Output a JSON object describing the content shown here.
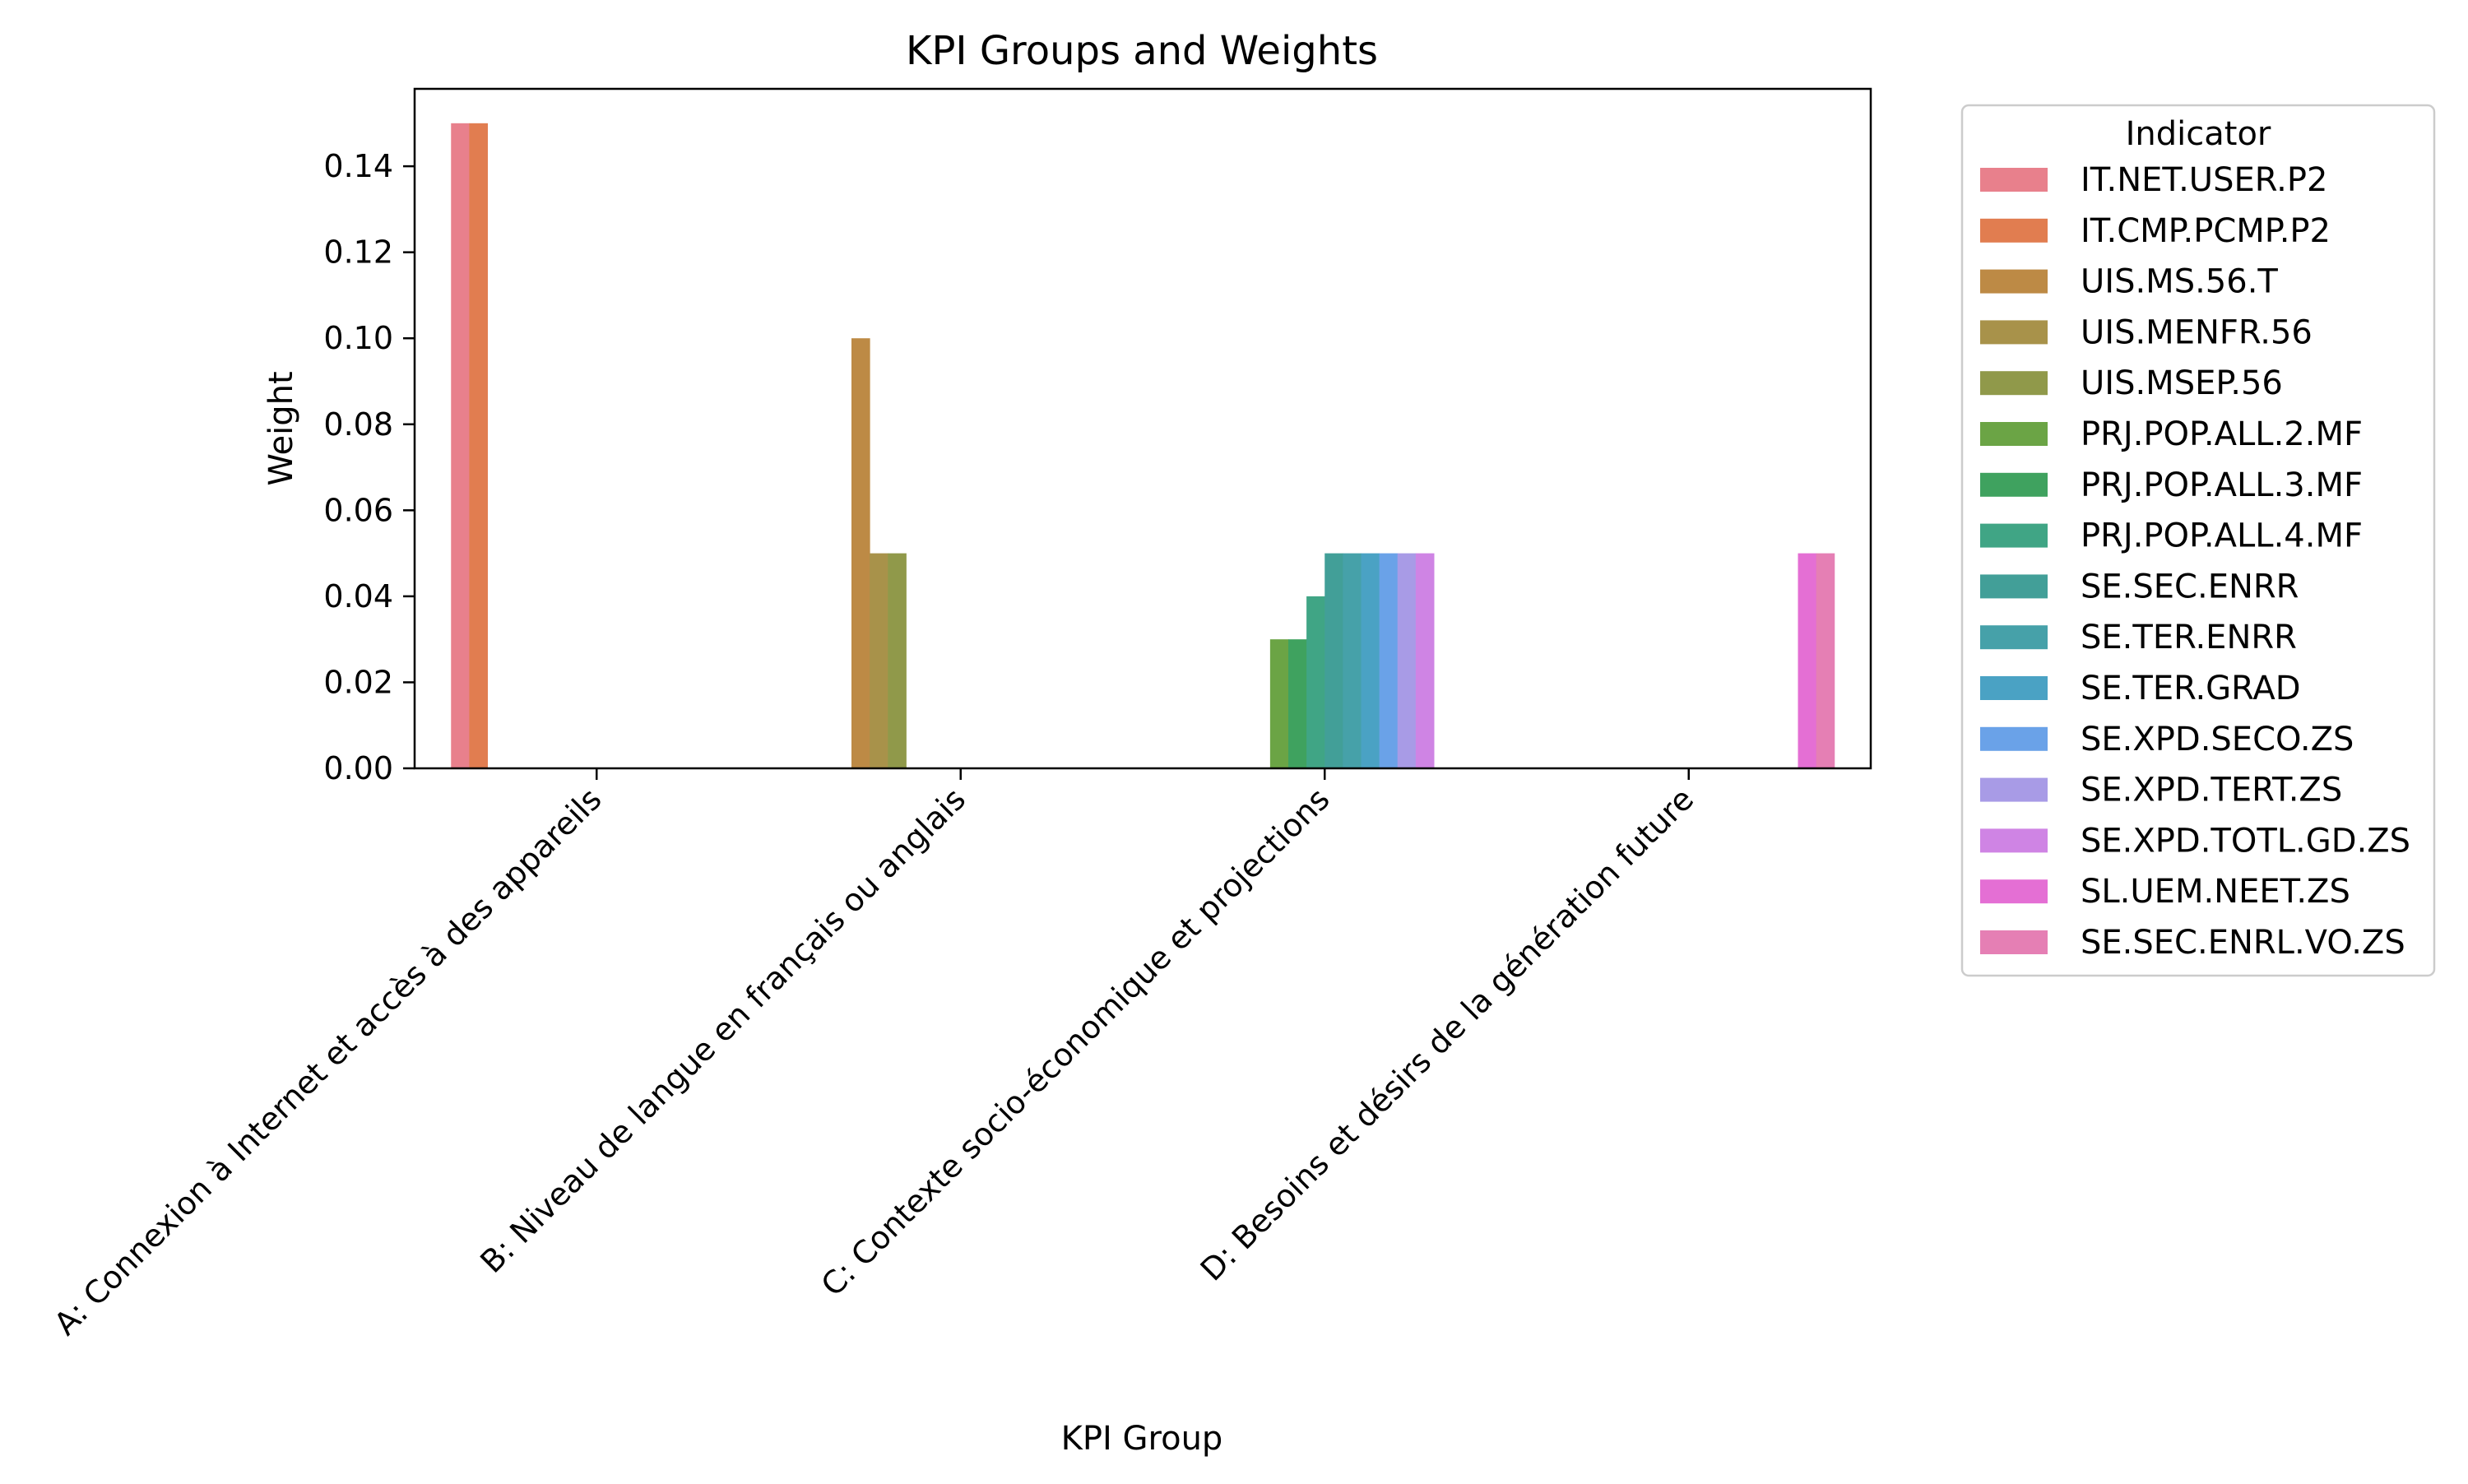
{
  "chart_data": {
    "type": "bar",
    "title": "KPI Groups and Weights",
    "xlabel": "KPI Group",
    "ylabel": "Weight",
    "ylim": [
      0,
      0.158
    ],
    "yticks": [
      "0.00",
      "0.02",
      "0.04",
      "0.06",
      "0.08",
      "0.10",
      "0.12",
      "0.14"
    ],
    "ytick_values": [
      0,
      0.02,
      0.04,
      0.06,
      0.08,
      0.1,
      0.12,
      0.14
    ],
    "grid": false,
    "legend_title": "Indicator",
    "legend_position": "outside right, top",
    "categories": [
      "A: Connexion à Internet et accès à des appareils",
      "B: Niveau de langue en français ou anglais",
      "C: Contexte socio-économique et projections",
      "D: Besoins et désirs de la génération future"
    ],
    "series": [
      {
        "name": "IT.NET.USER.P2",
        "color": "#e8808c",
        "values": [
          0.15,
          0,
          0,
          0
        ]
      },
      {
        "name": "IT.CMP.PCMP.P2",
        "color": "#e17d50",
        "values": [
          0.15,
          0,
          0,
          0
        ]
      },
      {
        "name": "UIS.MS.56.T",
        "color": "#bd8a45",
        "values": [
          0,
          0.1,
          0,
          0
        ]
      },
      {
        "name": "UIS.MENFR.56",
        "color": "#a8924a",
        "values": [
          0,
          0.05,
          0,
          0
        ]
      },
      {
        "name": "UIS.MSEP.56",
        "color": "#90994a",
        "values": [
          0,
          0.05,
          0,
          0
        ]
      },
      {
        "name": "PRJ.POP.ALL.2.MF",
        "color": "#6ba445",
        "values": [
          0,
          0,
          0.03,
          0
        ]
      },
      {
        "name": "PRJ.POP.ALL.3.MF",
        "color": "#3fa25f",
        "values": [
          0,
          0,
          0.03,
          0
        ]
      },
      {
        "name": "PRJ.POP.ALL.4.MF",
        "color": "#40a585",
        "values": [
          0,
          0,
          0.04,
          0
        ]
      },
      {
        "name": "SE.SEC.ENRR",
        "color": "#429f98",
        "values": [
          0,
          0,
          0.05,
          0
        ]
      },
      {
        "name": "SE.TER.ENRR",
        "color": "#46a1a9",
        "values": [
          0,
          0,
          0.05,
          0
        ]
      },
      {
        "name": "SE.TER.GRAD",
        "color": "#4aa2c4",
        "values": [
          0,
          0,
          0.05,
          0
        ]
      },
      {
        "name": "SE.XPD.SECO.ZS",
        "color": "#6aa2e8",
        "values": [
          0,
          0,
          0.05,
          0
        ]
      },
      {
        "name": "SE.XPD.TERT.ZS",
        "color": "#a89be6",
        "values": [
          0,
          0,
          0.05,
          0
        ]
      },
      {
        "name": "SE.XPD.TOTL.GD.ZS",
        "color": "#cf84e4",
        "values": [
          0,
          0,
          0.05,
          0
        ]
      },
      {
        "name": "SL.UEM.NEET.ZS",
        "color": "#e46fd4",
        "values": [
          0,
          0,
          0,
          0.05
        ]
      },
      {
        "name": "SE.SEC.ENRL.VO.ZS",
        "color": "#e57fb4",
        "values": [
          0,
          0,
          0,
          0.05
        ]
      }
    ]
  }
}
